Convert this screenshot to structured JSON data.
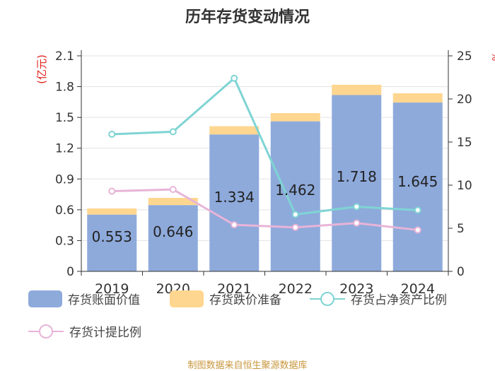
{
  "chart_data": {
    "type": "bar+line",
    "title": "历年存货变动情况",
    "categories": [
      "2019",
      "2020",
      "2021",
      "2022",
      "2023",
      "2024"
    ],
    "bar_series": [
      {
        "name": "存货账面价值",
        "color": "#8eaadb",
        "values": [
          0.553,
          0.646,
          1.334,
          1.462,
          1.718,
          1.645
        ]
      },
      {
        "name": "存货跌价准备",
        "color": "#ffd68f",
        "values": [
          0.06,
          0.07,
          0.08,
          0.08,
          0.1,
          0.09
        ]
      }
    ],
    "line_series": [
      {
        "name": "存货占净资产比例",
        "color": "#7fd4d4",
        "values": [
          15.9,
          16.2,
          22.4,
          6.6,
          7.5,
          7.1
        ]
      },
      {
        "name": "存货计提比例",
        "color": "#e8b4d8",
        "values": [
          9.3,
          9.5,
          5.4,
          5.1,
          5.6,
          4.8
        ]
      }
    ],
    "data_labels": [
      "0.553",
      "0.646",
      "1.334",
      "1.462",
      "1.718",
      "1.645"
    ],
    "y_left": {
      "label": "(亿元)",
      "min": 0,
      "max": 2.1,
      "ticks": [
        "0",
        "0.3",
        "0.6",
        "0.9",
        "1.2",
        "1.5",
        "1.8",
        "2.1"
      ]
    },
    "y_right": {
      "label": "%",
      "min": 0,
      "max": 25,
      "ticks": [
        "0",
        "5",
        "10",
        "15",
        "20",
        "25"
      ]
    },
    "grid": true,
    "legend_position": "bottom"
  },
  "source": "制图数据来自恒生聚源数据库"
}
